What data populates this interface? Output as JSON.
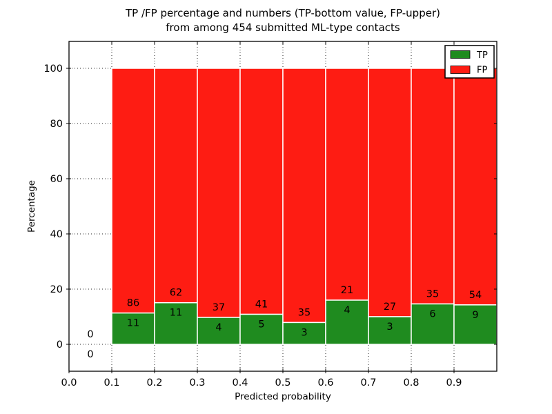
{
  "figure": {
    "title_line1": "TP /FP percentage and numbers (TP-bottom value, FP-upper)",
    "title_line2": "from among 454 submitted ML-type contacts"
  },
  "chart_data": {
    "type": "bar",
    "stacked": true,
    "normalized_to_percent": true,
    "title": "TP /FP percentage and numbers (TP-bottom value, FP-upper) from among 454 submitted ML-type contacts",
    "xlabel": "Predicted probability",
    "ylabel": "Percentage",
    "total_submitted_contacts": 454,
    "grid": "dotted",
    "x_tick_labels": [
      "0.0",
      "0.1",
      "0.2",
      "0.3",
      "0.4",
      "0.5",
      "0.6",
      "0.7",
      "0.8",
      "0.9"
    ],
    "x_tick_values": [
      0.0,
      0.1,
      0.2,
      0.3,
      0.4,
      0.5,
      0.6,
      0.7,
      0.8,
      0.9
    ],
    "y_tick_labels": [
      "0",
      "20",
      "40",
      "60",
      "80",
      "100"
    ],
    "y_tick_values": [
      0,
      20,
      40,
      60,
      80,
      100
    ],
    "xlim": [
      0.0,
      1.0
    ],
    "ylim": [
      -9.75,
      109.75
    ],
    "colors": {
      "tp": "#1f8b1f",
      "fp": "#fe1c13"
    },
    "legend": {
      "position": "upper right",
      "entries": [
        {
          "label": "TP",
          "color_key": "tp"
        },
        {
          "label": "FP",
          "color_key": "fp"
        }
      ]
    },
    "series_note": "bars span probability bins of width 0.1; green TP segment height = tp/(tp+fp)*100, red FP fills to 100%",
    "bins": [
      {
        "x_start": 0.0,
        "x_end": 0.1,
        "tp": 0,
        "fp": 0
      },
      {
        "x_start": 0.1,
        "x_end": 0.2,
        "tp": 11,
        "fp": 86
      },
      {
        "x_start": 0.2,
        "x_end": 0.3,
        "tp": 11,
        "fp": 62
      },
      {
        "x_start": 0.3,
        "x_end": 0.4,
        "tp": 4,
        "fp": 37
      },
      {
        "x_start": 0.4,
        "x_end": 0.5,
        "tp": 5,
        "fp": 41
      },
      {
        "x_start": 0.5,
        "x_end": 0.6,
        "tp": 3,
        "fp": 35
      },
      {
        "x_start": 0.6,
        "x_end": 0.7,
        "tp": 4,
        "fp": 21
      },
      {
        "x_start": 0.7,
        "x_end": 0.8,
        "tp": 3,
        "fp": 27
      },
      {
        "x_start": 0.8,
        "x_end": 0.9,
        "tp": 6,
        "fp": 35
      },
      {
        "x_start": 0.9,
        "x_end": 1.0,
        "tp": 9,
        "fp": 54
      }
    ]
  }
}
